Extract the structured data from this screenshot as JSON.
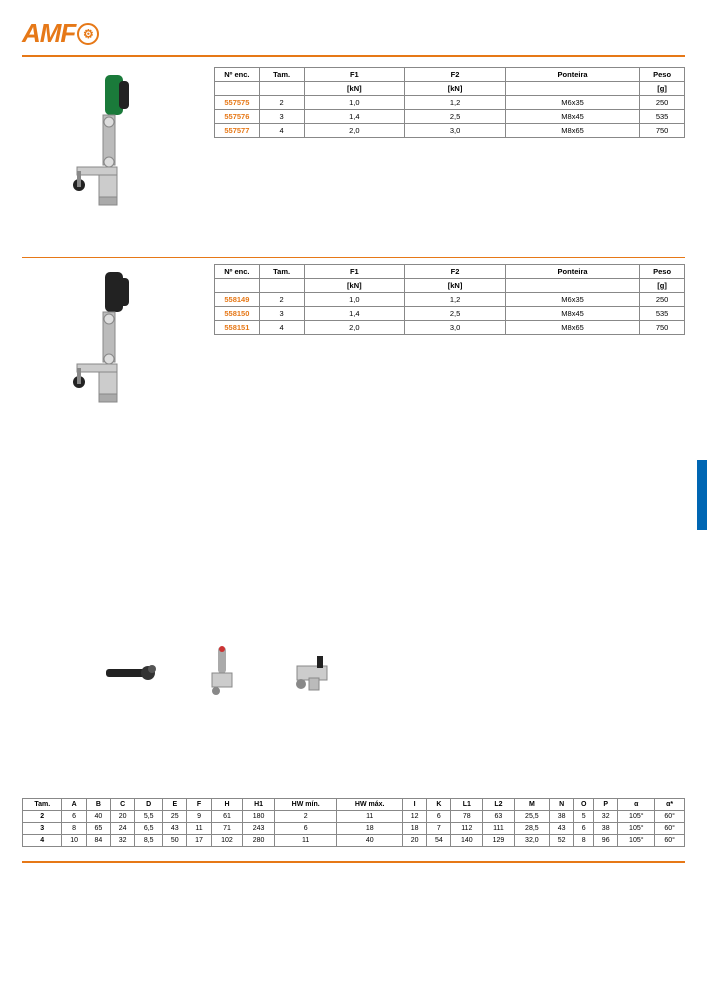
{
  "logo": {
    "text": "AMF",
    "symbol": "⚙"
  },
  "colors": {
    "accent": "#e67817",
    "sidebar": "#0066b3"
  },
  "table1": {
    "headers": [
      "Nº enc.",
      "Tam.",
      "F1",
      "F2",
      "Ponteira",
      "Peso"
    ],
    "subheaders": [
      "",
      "",
      "[kN]",
      "[kN]",
      "",
      "[g]"
    ],
    "rows": [
      [
        "557575",
        "2",
        "1,0",
        "1,2",
        "M6x35",
        "250"
      ],
      [
        "557576",
        "3",
        "1,4",
        "2,5",
        "M8x45",
        "535"
      ],
      [
        "557577",
        "4",
        "2,0",
        "3,0",
        "M8x65",
        "750"
      ]
    ]
  },
  "table2": {
    "headers": [
      "Nº enc.",
      "Tam.",
      "F1",
      "F2",
      "Ponteira",
      "Peso"
    ],
    "subheaders": [
      "",
      "",
      "[kN]",
      "[kN]",
      "",
      "[g]"
    ],
    "rows": [
      [
        "558149",
        "2",
        "1,0",
        "1,2",
        "M6x35",
        "250"
      ],
      [
        "558150",
        "3",
        "1,4",
        "2,5",
        "M8x45",
        "535"
      ],
      [
        "558151",
        "4",
        "2,0",
        "3,0",
        "M8x65",
        "750"
      ]
    ]
  },
  "dims": {
    "headers": [
      "Tam.",
      "A",
      "B",
      "C",
      "D",
      "E",
      "F",
      "H",
      "H1",
      "HW mín.",
      "HW máx.",
      "I",
      "K",
      "L1",
      "L2",
      "M",
      "N",
      "O",
      "P",
      "α",
      "α*"
    ],
    "rows": [
      [
        "2",
        "6",
        "40",
        "20",
        "5,5",
        "25",
        "9",
        "61",
        "180",
        "2",
        "11",
        "12",
        "6",
        "78",
        "63",
        "25,5",
        "38",
        "5",
        "32",
        "105°",
        "60°"
      ],
      [
        "3",
        "8",
        "65",
        "24",
        "6,5",
        "43",
        "11",
        "71",
        "243",
        "6",
        "18",
        "18",
        "7",
        "112",
        "111",
        "28,5",
        "43",
        "6",
        "38",
        "105°",
        "60°"
      ],
      [
        "4",
        "10",
        "84",
        "32",
        "8,5",
        "50",
        "17",
        "102",
        "280",
        "11",
        "40",
        "20",
        "54",
        "140",
        "129",
        "32,0",
        "52",
        "8",
        "96",
        "105°",
        "60°"
      ]
    ]
  }
}
